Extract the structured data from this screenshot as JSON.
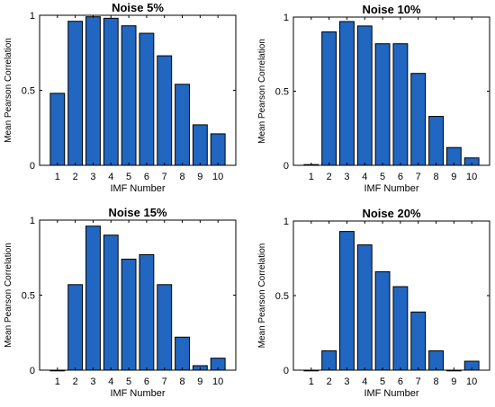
{
  "chart_data": [
    {
      "type": "bar",
      "title": "Noise 5%",
      "xlabel": "IMF Number",
      "ylabel": "Mean Pearson Correlation",
      "categories": [
        "1",
        "2",
        "3",
        "4",
        "5",
        "6",
        "7",
        "8",
        "9",
        "10"
      ],
      "values": [
        0.48,
        0.96,
        0.99,
        0.98,
        0.93,
        0.88,
        0.73,
        0.54,
        0.27,
        0.21
      ],
      "ylim": [
        0,
        1
      ],
      "yticks": [
        "0",
        "0.5",
        "1"
      ],
      "color": "#2166c0"
    },
    {
      "type": "bar",
      "title": "Noise 10%",
      "xlabel": "IMF Number",
      "ylabel": "Mean Pearson Correlation",
      "categories": [
        "1",
        "2",
        "3",
        "4",
        "5",
        "6",
        "7",
        "8",
        "9",
        "10"
      ],
      "values": [
        0.005,
        0.9,
        0.97,
        0.94,
        0.82,
        0.82,
        0.62,
        0.33,
        0.12,
        0.05
      ],
      "ylim": [
        0,
        1
      ],
      "yticks": [
        "0",
        "0.5",
        "1"
      ],
      "color": "#2166c0"
    },
    {
      "type": "bar",
      "title": "Noise 15%",
      "xlabel": "IMF Number",
      "ylabel": "Mean Pearson Correlation",
      "categories": [
        "1",
        "2",
        "3",
        "4",
        "5",
        "6",
        "7",
        "8",
        "9",
        "10"
      ],
      "values": [
        0,
        0.57,
        0.96,
        0.9,
        0.74,
        0.77,
        0.57,
        0.22,
        0.03,
        0.08
      ],
      "ylim": [
        0,
        1
      ],
      "yticks": [
        "0",
        "0.5",
        "1"
      ],
      "color": "#2166c0"
    },
    {
      "type": "bar",
      "title": "Noise 20%",
      "xlabel": "IMF Number",
      "ylabel": "Mean Pearson Correlation",
      "categories": [
        "1",
        "2",
        "3",
        "4",
        "5",
        "6",
        "7",
        "8",
        "9",
        "10"
      ],
      "values": [
        0,
        0.13,
        0.93,
        0.84,
        0.66,
        0.56,
        0.39,
        0.13,
        0,
        0.06
      ],
      "ylim": [
        0,
        1
      ],
      "yticks": [
        "0",
        "0.5",
        "1"
      ],
      "color": "#2166c0"
    }
  ]
}
